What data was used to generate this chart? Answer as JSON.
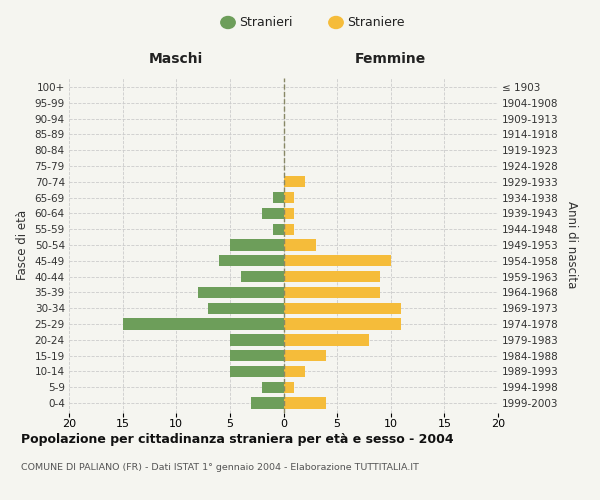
{
  "age_groups": [
    "0-4",
    "5-9",
    "10-14",
    "15-19",
    "20-24",
    "25-29",
    "30-34",
    "35-39",
    "40-44",
    "45-49",
    "50-54",
    "55-59",
    "60-64",
    "65-69",
    "70-74",
    "75-79",
    "80-84",
    "85-89",
    "90-94",
    "95-99",
    "100+"
  ],
  "birth_years": [
    "1999-2003",
    "1994-1998",
    "1989-1993",
    "1984-1988",
    "1979-1983",
    "1974-1978",
    "1969-1973",
    "1964-1968",
    "1959-1963",
    "1954-1958",
    "1949-1953",
    "1944-1948",
    "1939-1943",
    "1934-1938",
    "1929-1933",
    "1924-1928",
    "1919-1923",
    "1914-1918",
    "1909-1913",
    "1904-1908",
    "≤ 1903"
  ],
  "males": [
    3,
    2,
    5,
    5,
    5,
    15,
    7,
    8,
    4,
    6,
    5,
    1,
    2,
    1,
    0,
    0,
    0,
    0,
    0,
    0,
    0
  ],
  "females": [
    4,
    1,
    2,
    4,
    8,
    11,
    11,
    9,
    9,
    10,
    3,
    1,
    1,
    1,
    2,
    0,
    0,
    0,
    0,
    0,
    0
  ],
  "male_color": "#6d9e5a",
  "female_color": "#f5bc3a",
  "background_color": "#f5f5f0",
  "grid_color": "#cccccc",
  "center_line_color": "#888866",
  "xlim": 20,
  "title": "Popolazione per cittadinanza straniera per età e sesso - 2004",
  "subtitle": "COMUNE DI PALIANO (FR) - Dati ISTAT 1° gennaio 2004 - Elaborazione TUTTITALIA.IT",
  "xlabel_left": "Maschi",
  "xlabel_right": "Femmine",
  "ylabel_left": "Fasce di età",
  "ylabel_right": "Anni di nascita",
  "legend_stranieri": "Stranieri",
  "legend_straniere": "Straniere"
}
